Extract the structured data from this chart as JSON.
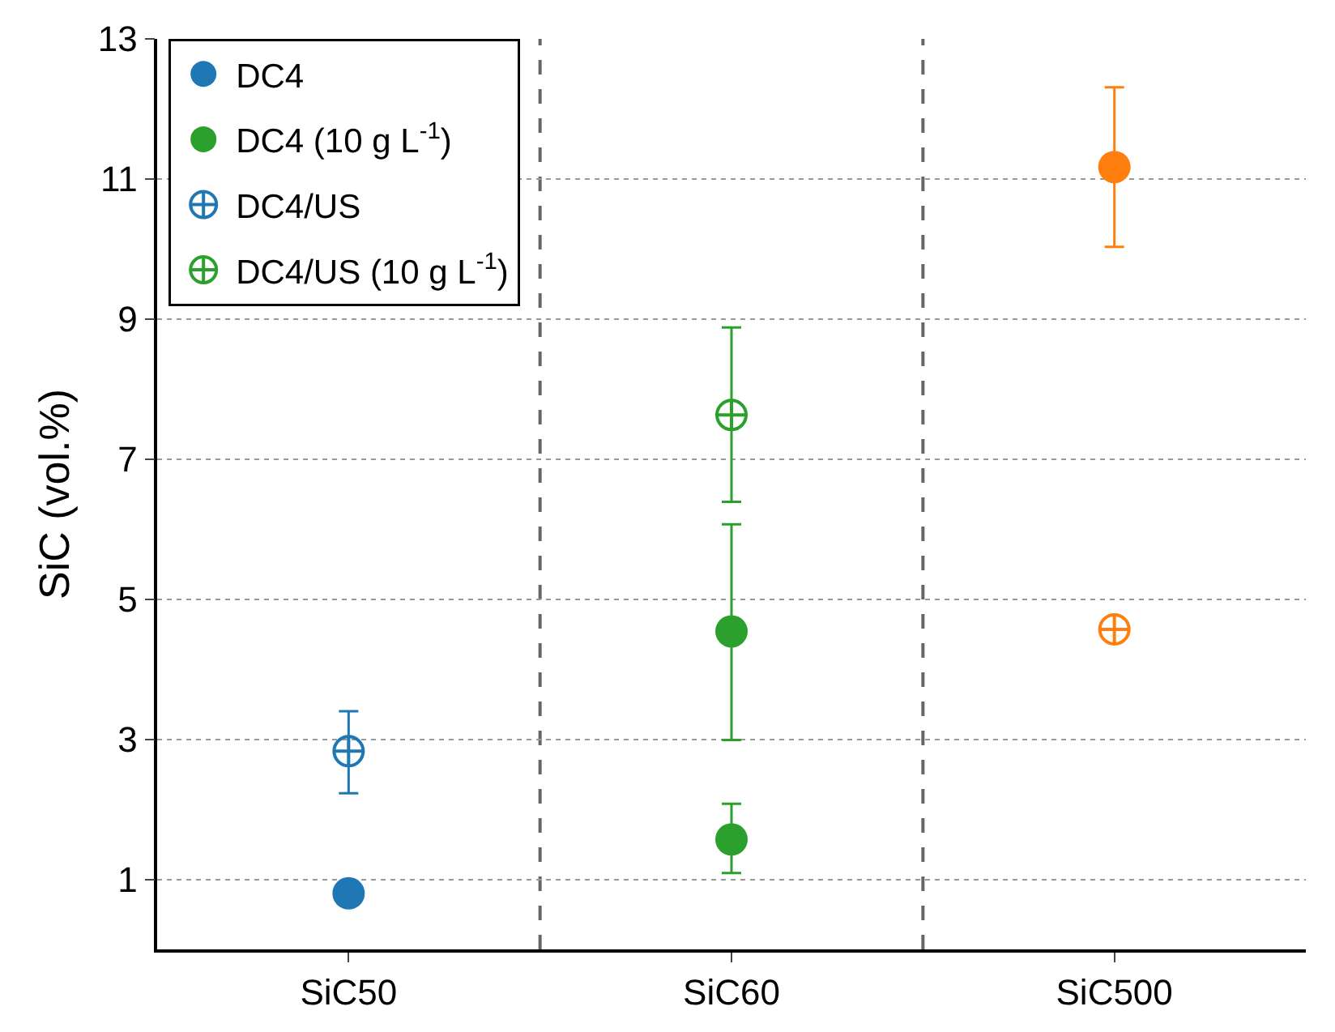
{
  "chart_data": {
    "type": "scatter",
    "ylabel": "SiC (vol.%)",
    "categories": [
      "SiC50",
      "SiC60",
      "SiC500"
    ],
    "ylim": [
      0,
      13
    ],
    "yticks": [
      1,
      3,
      5,
      7,
      9,
      11,
      13
    ],
    "grid": "y",
    "legend": "top left",
    "series": [
      {
        "name": "DC4",
        "marker": "circle",
        "colors": [
          "#1f77b4",
          "#2ca02c",
          "#ff7f0e"
        ],
        "values": [
          0.8,
          4.54,
          11.17
        ],
        "errors": [
          null,
          [
            2.99,
            6.07
          ],
          [
            10.03,
            12.31
          ]
        ]
      },
      {
        "name": "DC4 (10 g L$^{-1}$)",
        "marker": "circle",
        "color": "#2ca02c",
        "values": [
          null,
          1.57,
          null
        ],
        "errors": [
          null,
          [
            1.09,
            2.08
          ],
          null
        ]
      },
      {
        "name": "DC4/US",
        "marker": "cross",
        "colors": [
          "#1f77b4",
          null,
          "#ff7f0e"
        ],
        "values": [
          2.83,
          null,
          4.57
        ],
        "errors": [
          [
            2.23,
            3.4
          ],
          null,
          null
        ]
      },
      {
        "name": "DC4/US (10 g L$^{-1}$)",
        "marker": "cross",
        "color": "#2ca02c",
        "values": [
          null,
          7.63,
          null
        ],
        "errors": [
          null,
          [
            6.39,
            8.88
          ],
          null
        ]
      }
    ]
  }
}
